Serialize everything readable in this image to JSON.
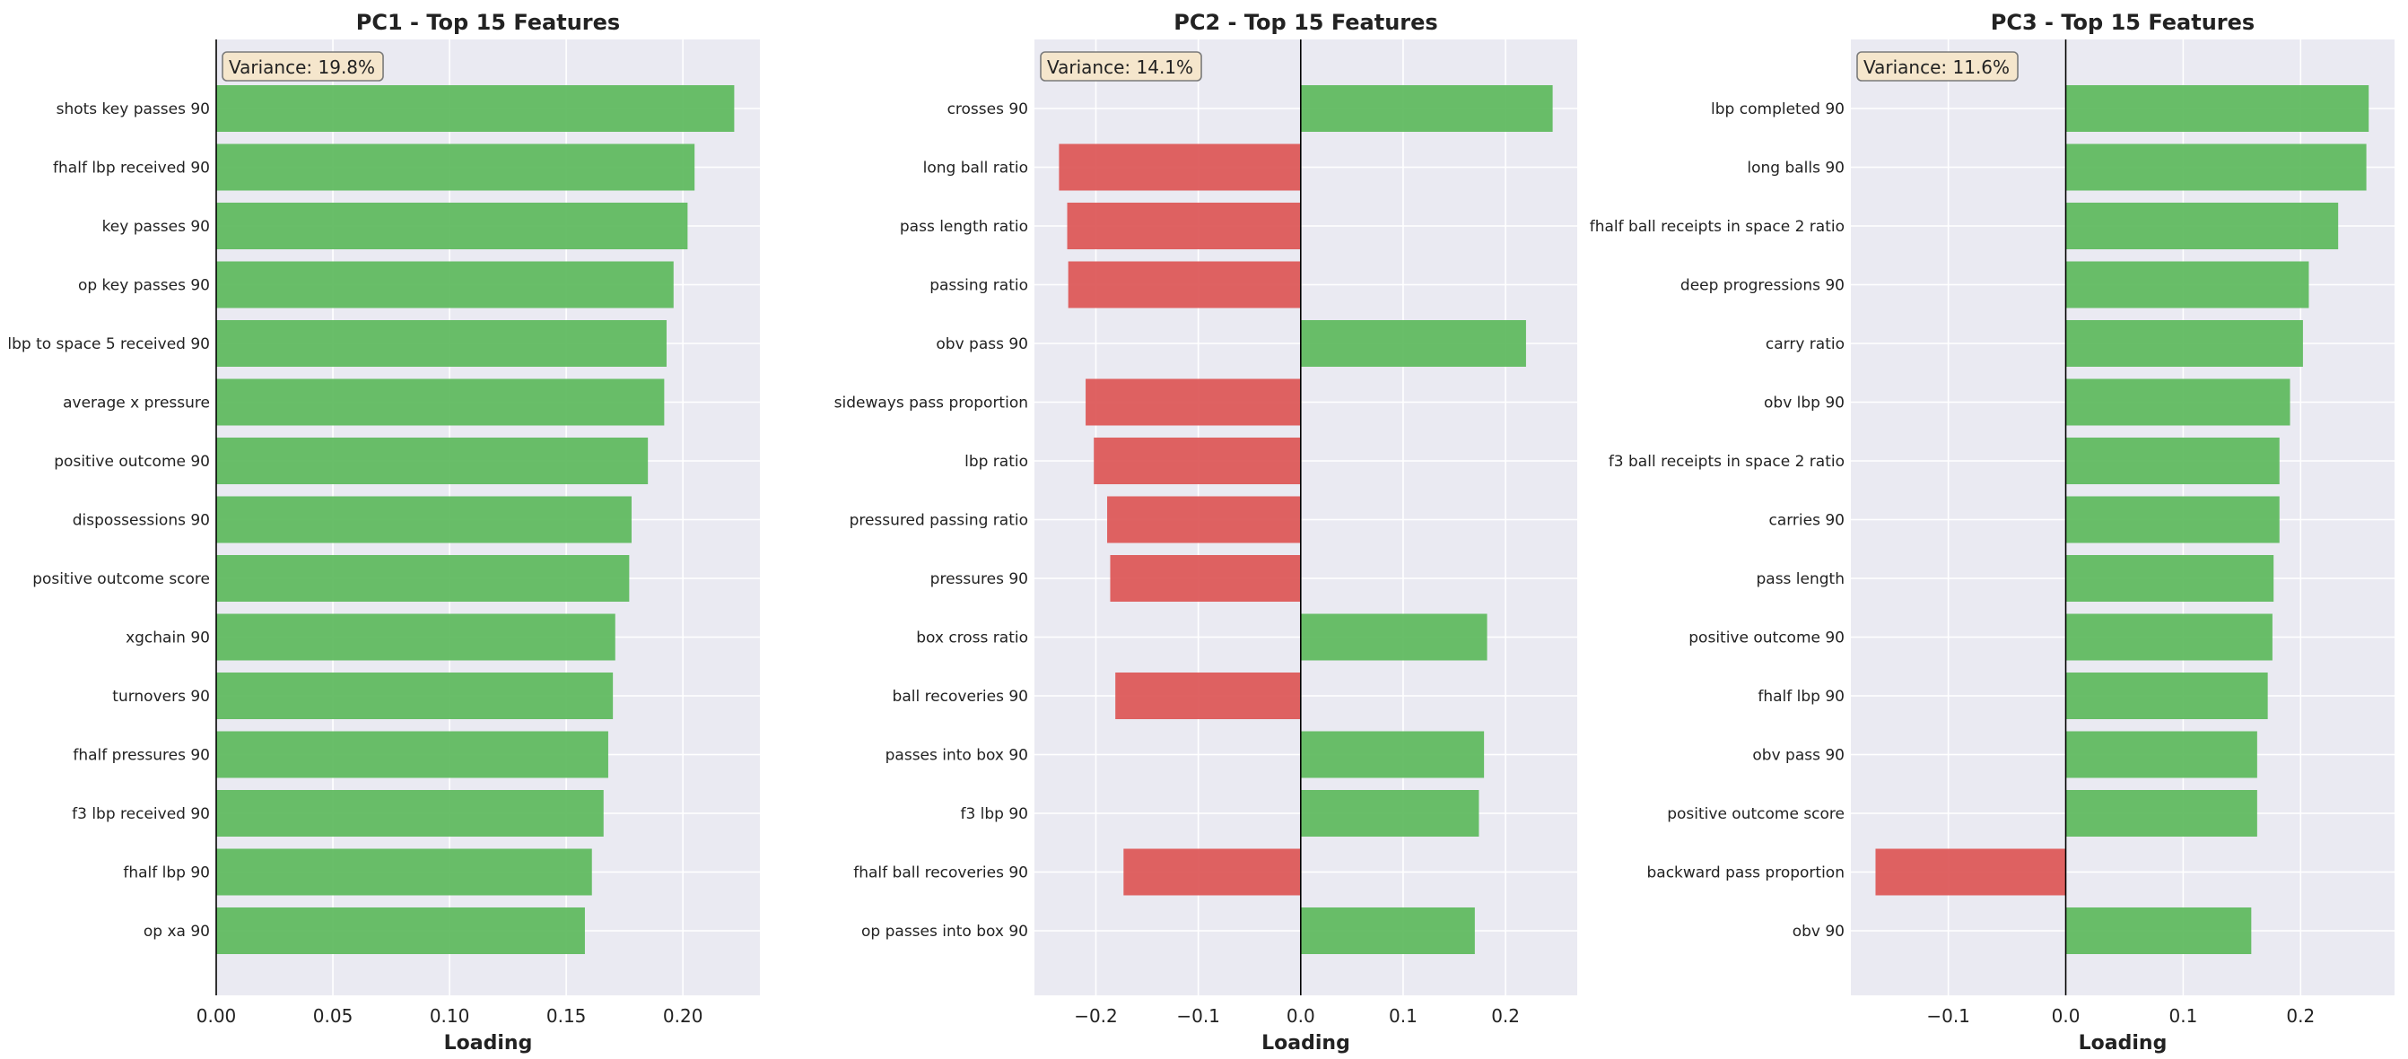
{
  "chart_data": [
    {
      "type": "bar",
      "orientation": "horizontal",
      "title": "PC1 - Top 15 Features",
      "xlabel": "Loading",
      "ylabel": "",
      "annotation": "Variance: 19.8%",
      "xlim": [
        0,
        0.233
      ],
      "xticks": [
        0.0,
        0.05,
        0.1,
        0.15,
        0.2
      ],
      "xtick_labels": [
        "0.00",
        "0.05",
        "0.10",
        "0.15",
        "0.20"
      ],
      "grid": true,
      "categories": [
        "shots key passes 90",
        "fhalf lbp received 90",
        "key passes 90",
        "op key passes 90",
        "lbp to space 5 received 90",
        "average x pressure",
        "positive outcome 90",
        "dispossessions 90",
        "positive outcome score",
        "xgchain 90",
        "turnovers 90",
        "fhalf pressures 90",
        "f3 lbp received 90",
        "fhalf lbp 90",
        "op xa 90"
      ],
      "values": [
        0.222,
        0.205,
        0.202,
        0.196,
        0.193,
        0.192,
        0.185,
        0.178,
        0.177,
        0.171,
        0.17,
        0.168,
        0.166,
        0.161,
        0.158
      ]
    },
    {
      "type": "bar",
      "orientation": "horizontal",
      "title": "PC2 - Top 15 Features",
      "xlabel": "Loading",
      "ylabel": "",
      "annotation": "Variance: 14.1%",
      "xlim": [
        -0.26,
        0.27
      ],
      "xticks": [
        -0.2,
        -0.1,
        0.0,
        0.1,
        0.2
      ],
      "xtick_labels": [
        "−0.2",
        "−0.1",
        "0.0",
        "0.1",
        "0.2"
      ],
      "grid": true,
      "categories": [
        "crosses 90",
        "long ball ratio",
        "pass length ratio",
        "passing ratio",
        "obv pass 90",
        "sideways pass proportion",
        "lbp ratio",
        "pressured passing ratio",
        "pressures 90",
        "box cross ratio",
        "ball recoveries 90",
        "passes into box 90",
        "f3 lbp 90",
        "fhalf ball recoveries 90",
        "op passes into box 90"
      ],
      "values": [
        0.246,
        -0.236,
        -0.228,
        -0.227,
        0.22,
        -0.21,
        -0.202,
        -0.189,
        -0.186,
        0.182,
        -0.181,
        0.179,
        0.174,
        -0.173,
        0.17
      ]
    },
    {
      "type": "bar",
      "orientation": "horizontal",
      "title": "PC3 - Top 15 Features",
      "xlabel": "Loading",
      "ylabel": "",
      "annotation": "Variance: 11.6%",
      "xlim": [
        -0.183,
        0.28
      ],
      "xticks": [
        -0.1,
        0.0,
        0.1,
        0.2
      ],
      "xtick_labels": [
        "−0.1",
        "0.0",
        "0.1",
        "0.2"
      ],
      "grid": true,
      "categories": [
        "lbp completed 90",
        "long balls 90",
        "fhalf ball receipts in space 2 ratio",
        "deep progressions 90",
        "carry ratio",
        "obv lbp 90",
        "f3 ball receipts in space 2 ratio",
        "carries 90",
        "pass length",
        "positive outcome 90",
        "fhalf lbp 90",
        "obv pass 90",
        "positive outcome score",
        "backward pass proportion",
        "obv 90"
      ],
      "values": [
        0.258,
        0.256,
        0.232,
        0.207,
        0.202,
        0.191,
        0.182,
        0.182,
        0.177,
        0.176,
        0.172,
        0.163,
        0.163,
        -0.162,
        0.158
      ]
    }
  ],
  "colors": {
    "positive": "#5cb85c",
    "negative": "#dc5555",
    "plot_background": "#eaeaf2",
    "grid": "#ffffff",
    "annotation_fill": "#f5e6cc",
    "annotation_border": "#7a7a7a",
    "text": "#222222"
  }
}
